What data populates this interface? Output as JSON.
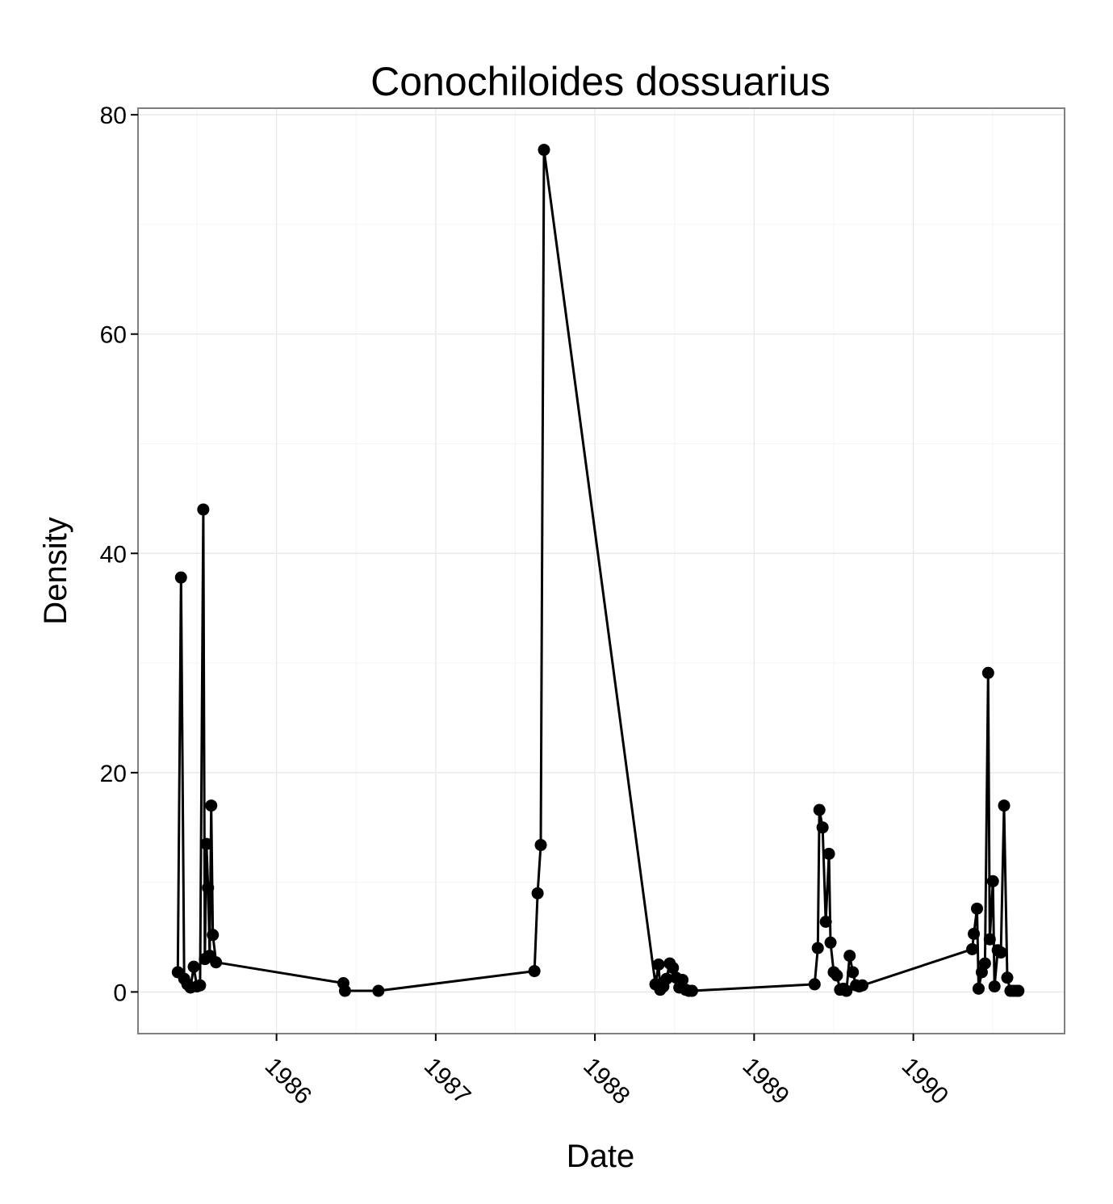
{
  "chart_data": {
    "type": "line",
    "title": "Conochiloides dossuarius",
    "xlabel": "Date",
    "ylabel": "Density",
    "x_ticks": [
      "1986",
      "1987",
      "1988",
      "1989",
      "1990"
    ],
    "y_ticks": [
      "0",
      "20",
      "40",
      "60",
      "80"
    ],
    "ylim": [
      -3.8,
      80.6
    ],
    "xlim": [
      1985.13,
      1990.95
    ],
    "grid": true,
    "markers": "filled circles",
    "line_color": "#000000",
    "series": [
      {
        "x": [
          1985.38,
          1985.4,
          1985.42,
          1985.44,
          1985.46,
          1985.48,
          1985.5,
          1985.52,
          1985.54,
          1985.55,
          1985.56,
          1985.57,
          1985.58,
          1985.59,
          1985.6,
          1985.62,
          1986.42,
          1986.43,
          1986.64,
          1987.62,
          1987.64,
          1987.66,
          1987.68,
          1988.38,
          1988.4,
          1988.41,
          1988.43,
          1988.45,
          1988.47,
          1988.49,
          1988.51,
          1988.53,
          1988.55,
          1988.57,
          1988.59,
          1988.61,
          1989.38,
          1989.4,
          1989.41,
          1989.43,
          1989.45,
          1989.47,
          1989.48,
          1989.5,
          1989.52,
          1989.54,
          1989.56,
          1989.58,
          1989.6,
          1989.62,
          1989.64,
          1989.66,
          1989.68,
          1990.37,
          1990.38,
          1990.4,
          1990.41,
          1990.43,
          1990.45,
          1990.47,
          1990.48,
          1990.5,
          1990.51,
          1990.53,
          1990.55,
          1990.57,
          1990.59,
          1990.61,
          1990.63,
          1990.65,
          1990.66
        ],
        "y": [
          1.8,
          37.8,
          1.2,
          0.7,
          0.4,
          2.3,
          0.5,
          0.6,
          44.0,
          3.0,
          13.5,
          9.5,
          3.3,
          17.0,
          5.2,
          2.7,
          0.8,
          0.1,
          0.1,
          1.9,
          9.0,
          13.4,
          76.8,
          0.7,
          2.5,
          0.2,
          0.5,
          1.2,
          2.6,
          2.2,
          1.3,
          0.4,
          1.1,
          0.2,
          0.1,
          0.1,
          0.7,
          4.0,
          16.6,
          15.0,
          6.4,
          12.6,
          4.5,
          1.8,
          1.5,
          0.2,
          0.3,
          0.1,
          3.3,
          1.8,
          0.6,
          0.5,
          0.6,
          3.9,
          5.3,
          7.6,
          0.3,
          1.8,
          2.6,
          29.1,
          4.8,
          10.1,
          0.5,
          3.8,
          3.6,
          17.0,
          1.3,
          0.1,
          0.1,
          0.1,
          0.1
        ]
      }
    ]
  }
}
